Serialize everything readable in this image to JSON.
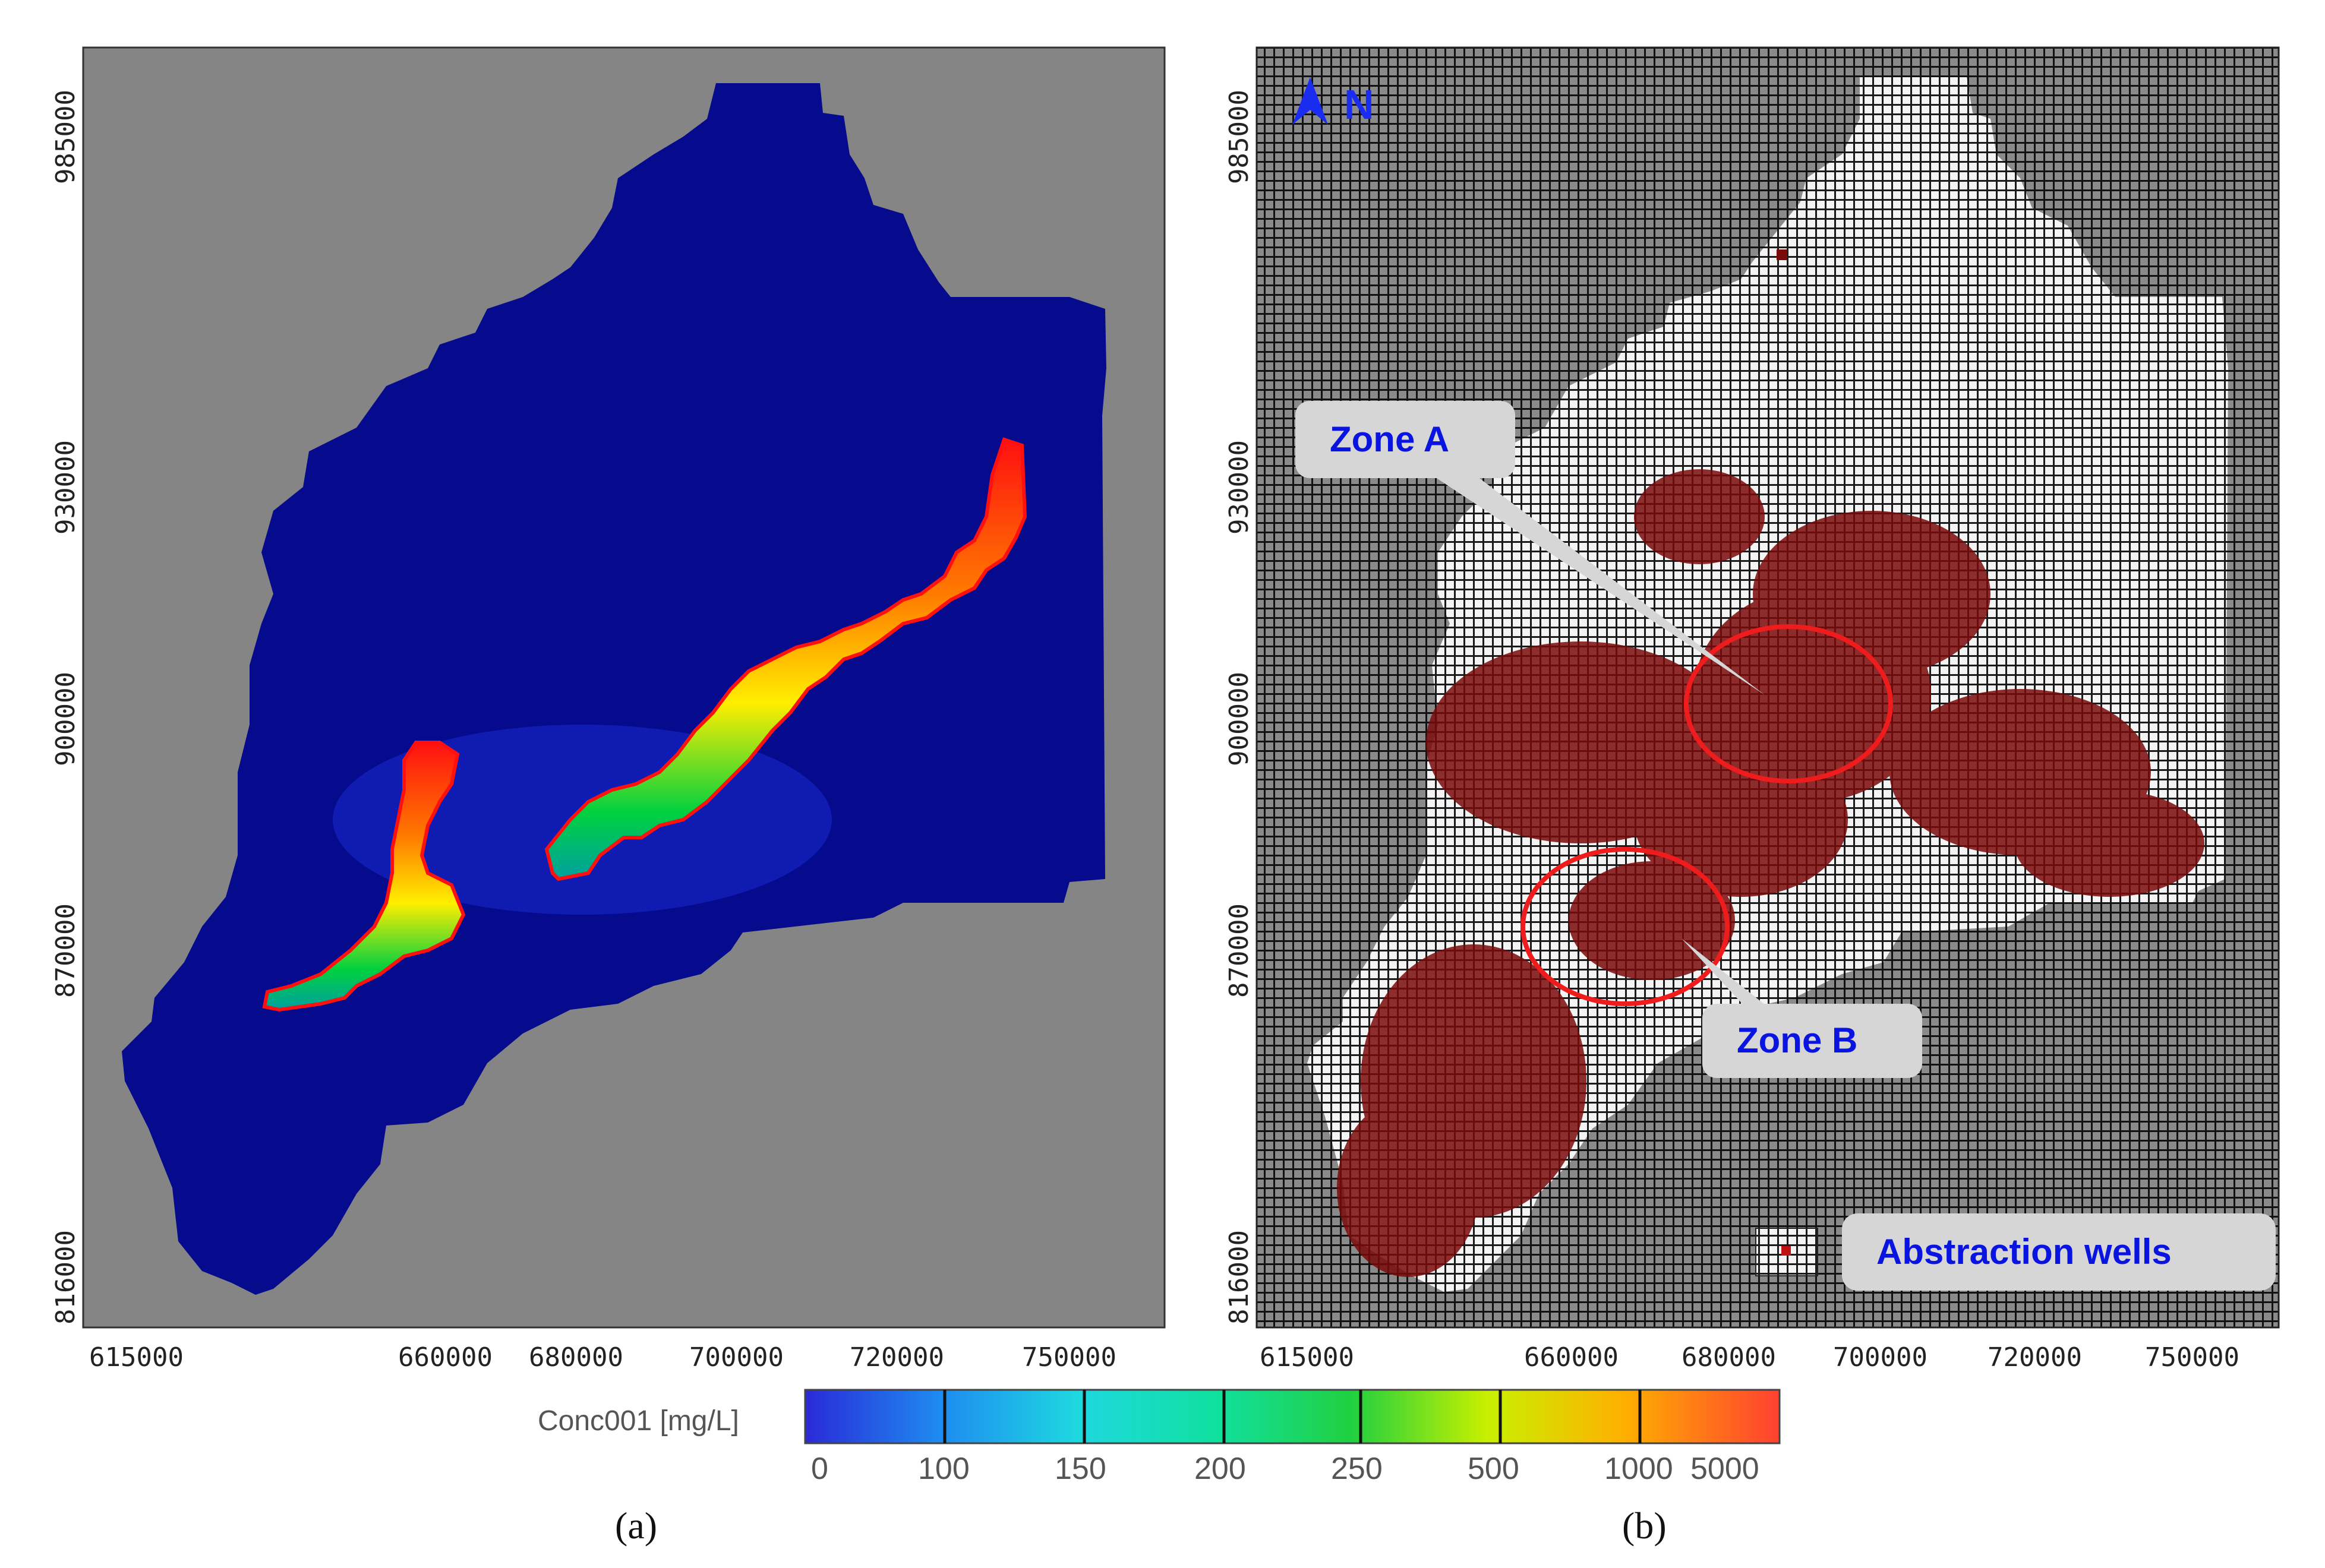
{
  "colors": {
    "background_gray": "#858585",
    "domain_blue": "#060a8c",
    "grid_line": "#111111",
    "grid_cell_dark": "#8a8a8a",
    "grid_cell_light": "#f2f2f2",
    "well_color": "#7a0a0a",
    "zone_circle": "#ee1c1c",
    "callout_fill": "#d6d6d6",
    "callout_text": "#0a14e0",
    "plume_red": "#ff1010",
    "plume_orange": "#ff8c00",
    "plume_yellow": "#ffff00",
    "plume_green": "#00d040"
  },
  "panel_a": {
    "label": "(a)",
    "x_ticks": [
      "615000",
      "660000",
      "680000",
      "700000",
      "720000",
      "750000"
    ],
    "y_ticks": [
      "985000",
      "930000",
      "900000",
      "870000",
      "816000"
    ]
  },
  "panel_b": {
    "label": "(b)",
    "x_ticks": [
      "615000",
      "660000",
      "680000",
      "700000",
      "720000",
      "750000"
    ],
    "y_ticks": [
      "985000",
      "930000",
      "900000",
      "870000",
      "816000"
    ],
    "north_label": "N",
    "callouts": {
      "zone_a": "Zone A",
      "zone_b": "Zone B",
      "legend": "Abstraction wells"
    }
  },
  "colorbar": {
    "title": "Conc001 [mg/L]",
    "ticks": [
      "0",
      "100",
      "150",
      "200",
      "250",
      "500",
      "1000",
      "5000"
    ],
    "colors": [
      "#2a2ad8",
      "#1ea0f0",
      "#1ed8d0",
      "#10e0a0",
      "#20d040",
      "#a8f000",
      "#ffc000",
      "#ff6030"
    ]
  }
}
